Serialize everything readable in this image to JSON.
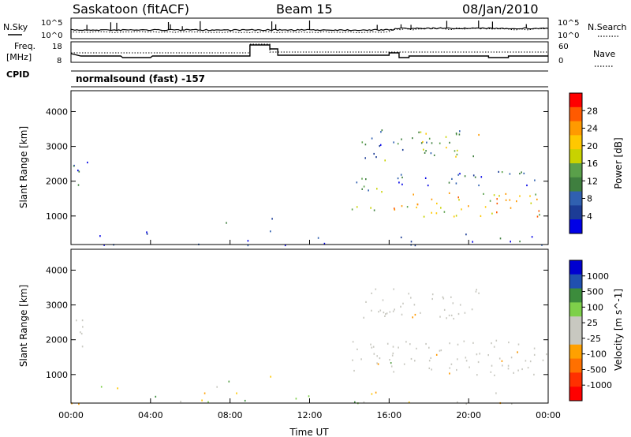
{
  "header": {
    "title": "Saskatoon (fitACF)",
    "beam": "Beam 15",
    "date": "08/Jan/2010"
  },
  "status_panels": {
    "nsky_label": "N.Sky",
    "nsky_ticks": [
      "10^5",
      "10^0"
    ],
    "nsearch_label": "N.Search",
    "freq_label_1": "Freq.",
    "freq_label_2": "[MHz]",
    "freq_ticks": [
      "18",
      "8"
    ],
    "nave_label": "Nave",
    "nave_ticks": [
      "60",
      "0"
    ],
    "cpid_label": "CPID",
    "cpid_text": "normalsound (fast) -157"
  },
  "chart_data": [
    {
      "type": "heatmap",
      "quantity": "power",
      "ylabel": "Slant Range [km]",
      "yticks": [
        1000,
        2000,
        3000,
        4000
      ],
      "ylim": [
        180,
        4600
      ],
      "colorbar_label": "Power [dB]",
      "colorbar_ticks": [
        "28",
        "24",
        "20",
        "16",
        "12",
        "8",
        "4"
      ],
      "colorbar_colors": [
        "#ff0000",
        "#ff5a00",
        "#ff9a00",
        "#ffc800",
        "#c8d200",
        "#5aa04a",
        "#3f7f3f",
        "#3060b0",
        "#1c3c96",
        "#0000e6"
      ],
      "regions": [
        {
          "t0": 0.1,
          "t1": 1.0,
          "r0": 1800,
          "r1": 2600,
          "level": 0.25
        },
        {
          "t0": 7.6,
          "t1": 8.6,
          "r0": 820,
          "r1": 960,
          "level": 0.2
        },
        {
          "t0": 9.8,
          "t1": 10.4,
          "r0": 900,
          "r1": 1060,
          "level": 0.2
        },
        {
          "t0": 14.1,
          "t1": 15.6,
          "r0": 1100,
          "r1": 2100,
          "level": 0.45
        },
        {
          "t0": 14.6,
          "t1": 16.0,
          "r0": 2600,
          "r1": 3600,
          "level": 0.35
        },
        {
          "t0": 16.2,
          "t1": 24.0,
          "r0": 1000,
          "r1": 1700,
          "level": 0.75
        },
        {
          "t0": 16.4,
          "t1": 24.0,
          "r0": 1900,
          "r1": 2300,
          "level": 0.3
        },
        {
          "t0": 17.4,
          "t1": 20.6,
          "r0": 2700,
          "r1": 3500,
          "level": 0.55
        },
        {
          "t0": 16.2,
          "t1": 18.4,
          "r0": 2700,
          "r1": 3300,
          "level": 0.3
        },
        {
          "t0": 0.0,
          "t1": 9.0,
          "r0": 180,
          "r1": 600,
          "level": 0.1
        },
        {
          "t0": 9.8,
          "t1": 24.0,
          "r0": 180,
          "r1": 700,
          "level": 0.12
        }
      ]
    },
    {
      "type": "heatmap",
      "quantity": "velocity",
      "ylabel": "Slant Range [km]",
      "xlabel": "Time UT",
      "yticks": [
        1000,
        2000,
        3000,
        4000
      ],
      "ylim": [
        180,
        4600
      ],
      "xticks": [
        "00:00",
        "04:00",
        "08:00",
        "12:00",
        "16:00",
        "20:00",
        "00:00"
      ],
      "xlim": [
        0,
        24
      ],
      "colorbar_label": "Velocity [m s^-1]",
      "colorbar_ticks": [
        "1000",
        "500",
        "100",
        "25",
        "-25",
        "-100",
        "-500",
        "-1000"
      ],
      "colorbar_colors": [
        "#0000d0",
        "#2050b0",
        "#3c8c3c",
        "#7ed04a",
        "#c8c8c0",
        "#c8c8c0",
        "#ffa000",
        "#ff7000",
        "#ff3000",
        "#ff0000"
      ],
      "regions": [
        {
          "t0": 0.1,
          "t1": 1.0,
          "r0": 1800,
          "r1": 2600,
          "vel": "ground"
        },
        {
          "t0": 7.6,
          "t1": 8.6,
          "r0": 820,
          "r1": 960,
          "vel": "positive"
        },
        {
          "t0": 9.8,
          "t1": 10.4,
          "r0": 900,
          "r1": 1060,
          "vel": "negative"
        },
        {
          "t0": 14.1,
          "t1": 24.0,
          "r0": 1000,
          "r1": 2000,
          "vel": "ground"
        },
        {
          "t0": 14.6,
          "t1": 20.6,
          "r0": 2600,
          "r1": 3500,
          "vel": "ground"
        },
        {
          "t0": 0.0,
          "t1": 24.0,
          "r0": 180,
          "r1": 700,
          "vel": "mixed"
        }
      ]
    }
  ]
}
